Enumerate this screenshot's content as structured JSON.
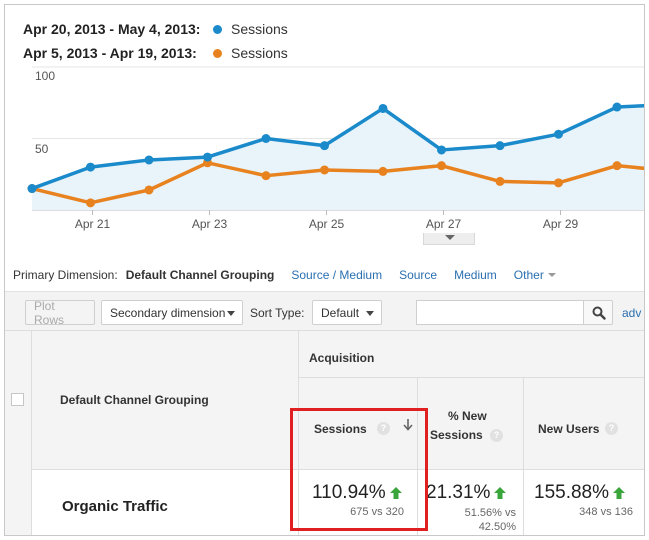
{
  "legend": [
    {
      "range": "Apr 20, 2013 - May 4, 2013:",
      "label": "Sessions",
      "color": "#1a8acb"
    },
    {
      "range": "Apr 5, 2013 - Apr 19, 2013:",
      "label": "Sessions",
      "color": "#e8821e"
    }
  ],
  "chart_data": {
    "type": "line",
    "y_ticks": [
      "100",
      "50"
    ],
    "x_ticks": [
      "Apr 21",
      "Apr 23",
      "Apr 25",
      "Apr 27",
      "Apr 29"
    ],
    "ylim": [
      0,
      100
    ],
    "grid": true,
    "series": [
      {
        "name": "Sessions",
        "period": "Apr 20, 2013 - May 4, 2013",
        "color": "#1a8acb",
        "area": true,
        "values": [
          15,
          30,
          35,
          37,
          50,
          45,
          71,
          42,
          45,
          53,
          72,
          74
        ]
      },
      {
        "name": "Sessions",
        "period": "Apr 5, 2013 - Apr 19, 2013",
        "color": "#e8821e",
        "values": [
          15,
          5,
          14,
          33,
          24,
          28,
          27,
          31,
          20,
          19,
          31,
          27
        ]
      }
    ]
  },
  "primary_dimension": {
    "label": "Primary Dimension:",
    "active": "Default Channel Grouping",
    "links": [
      "Source / Medium",
      "Source",
      "Medium"
    ],
    "other": "Other"
  },
  "toolbar": {
    "plot_rows": "Plot Rows",
    "secondary_dimension": "Secondary dimension",
    "sort_type_label": "Sort Type:",
    "sort_type_value": "Default",
    "search_value": "",
    "advanced": "adv"
  },
  "table": {
    "dimension_header": "Default Channel Grouping",
    "group_header": "Acquisition",
    "columns": {
      "sessions": "Sessions",
      "new_sessions_line1": "% New",
      "new_sessions_line2": "Sessions",
      "new_users": "New Users"
    },
    "help_glyph": "?",
    "row": {
      "label": "Organic Traffic",
      "sessions_pct": "110.94%",
      "sessions_cmp": "675 vs 320",
      "new_sessions_pct": "21.31%",
      "new_sessions_cmp1": "51.56% vs",
      "new_sessions_cmp2": "42.50%",
      "new_users_pct": "155.88%",
      "new_users_cmp": "348 vs 136"
    }
  },
  "colors": {
    "up_arrow": "#3aa53a",
    "highlight": "#e02020",
    "link": "#2a6fb0"
  }
}
